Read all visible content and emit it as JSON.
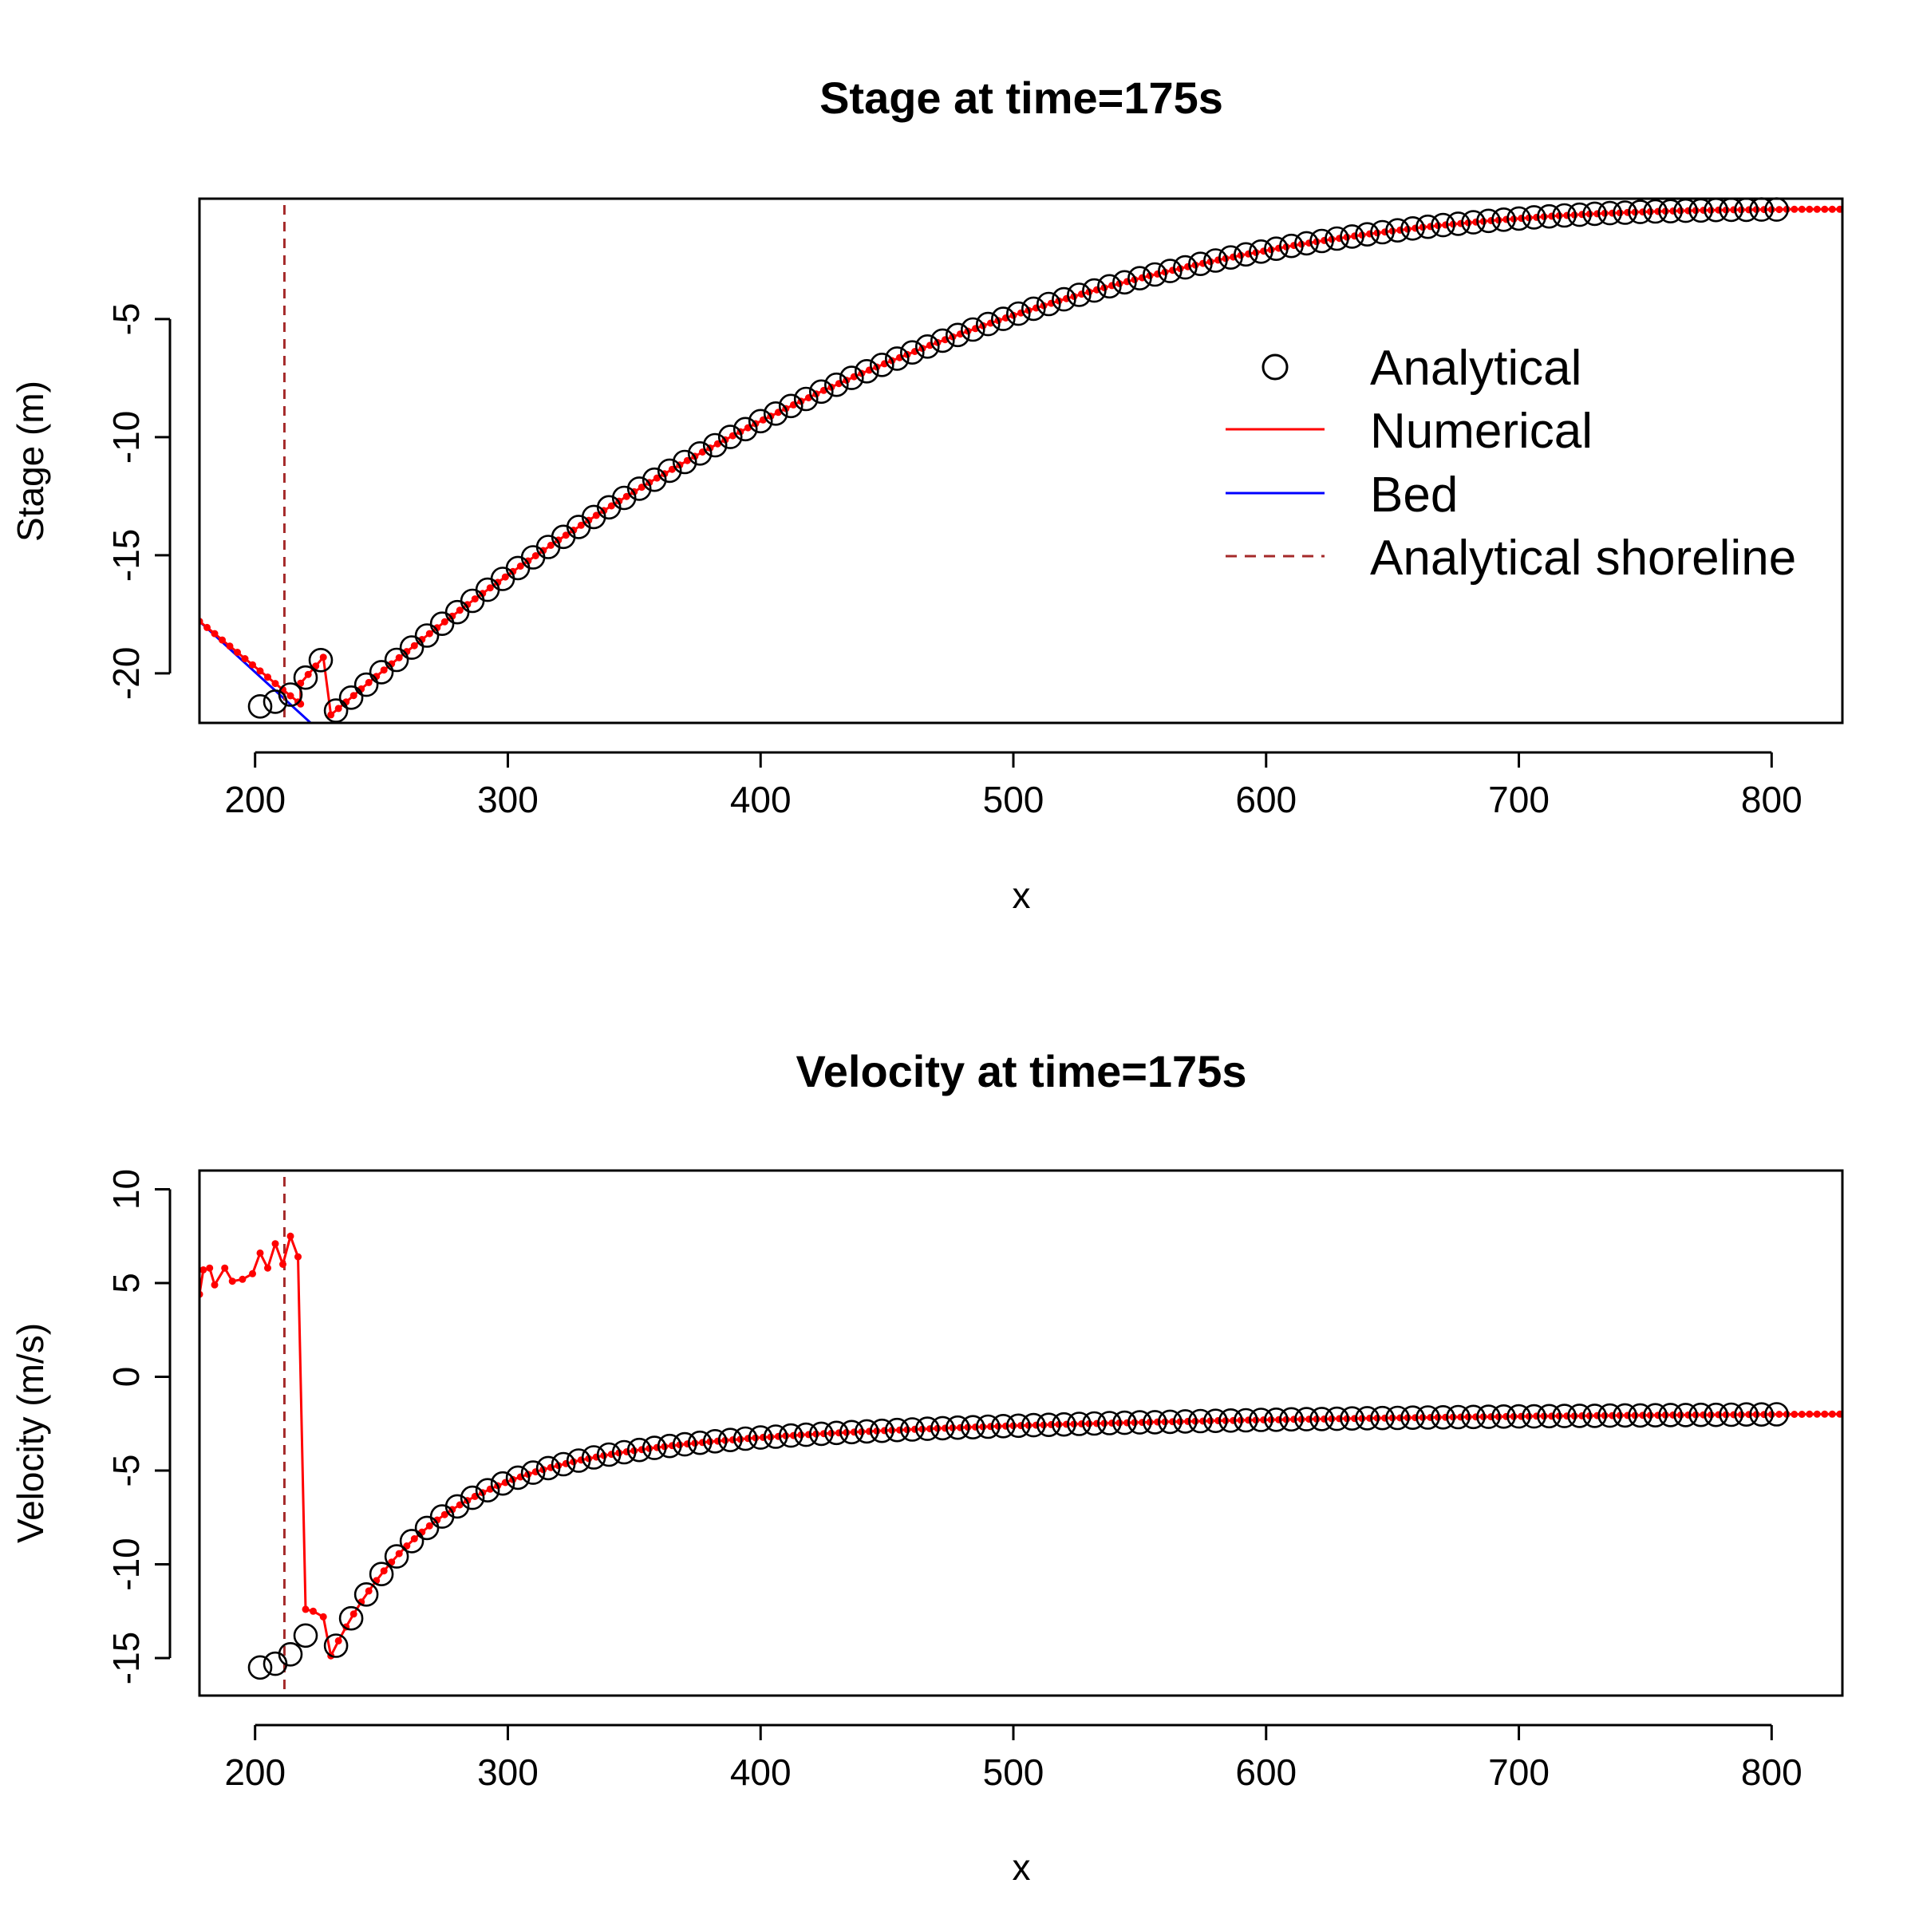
{
  "colors": {
    "analytical": "#000000",
    "numerical": "#ff0000",
    "bed": "#0000ff",
    "shoreline": "#a52a2a"
  },
  "legend": {
    "placement": "center-right",
    "entries": [
      {
        "label": "Analytical",
        "marker": "open-circle",
        "color": "#000000"
      },
      {
        "label": "Numerical",
        "line": "solid",
        "color": "#ff0000"
      },
      {
        "label": "Bed",
        "line": "solid",
        "color": "#0000ff"
      },
      {
        "label": "Analytical shoreline",
        "line": "dashed",
        "color": "#a52a2a"
      }
    ]
  },
  "chart_data": [
    {
      "type": "line",
      "title": "Stage at time=175s",
      "xlabel": "x",
      "ylabel": "Stage (m)",
      "xlim": [
        178,
        828
      ],
      "ylim": [
        -22.1,
        0.1
      ],
      "xticks": [
        200,
        300,
        400,
        500,
        600,
        700,
        800
      ],
      "yticks": [
        -20,
        -15,
        -10,
        -5
      ],
      "grid": false,
      "shoreline_x": 211.6,
      "analytical_model": {
        "type": "stage",
        "x_start": 202,
        "x_end": 805,
        "step": 6,
        "points": [
          [
            202,
            -21.4
          ],
          [
            208,
            -21.2
          ],
          [
            214,
            -20.9
          ]
        ]
      },
      "numerical_model": {
        "type": "stage",
        "x_start": 218,
        "x_end": 828,
        "step": 3,
        "wet_start": 218,
        "bed_points": [
          [
            178,
            -17.8
          ],
          [
            218,
            -21.3
          ]
        ]
      },
      "bed_model": {
        "points": [
          [
            178,
            -17.8
          ],
          [
            222,
            -22.1
          ]
        ]
      },
      "series": [
        {
          "name": "Analytical",
          "kind": "points"
        },
        {
          "name": "Numerical",
          "kind": "line"
        },
        {
          "name": "Bed",
          "kind": "line"
        }
      ]
    },
    {
      "type": "line",
      "title": "Velocity at time=175s",
      "xlabel": "x",
      "ylabel": "Velocity (m/s)",
      "xlim": [
        178,
        828
      ],
      "ylim": [
        -17.0,
        11.0
      ],
      "xticks": [
        200,
        300,
        400,
        500,
        600,
        700,
        800
      ],
      "yticks": [
        -15,
        -10,
        -5,
        0,
        5,
        10
      ],
      "grid": false,
      "shoreline_x": 211.6,
      "analytical_model": {
        "type": "velocity",
        "x_start": 202,
        "x_end": 805,
        "step": 6,
        "points": [
          [
            202,
            -15.5
          ],
          [
            208,
            -15.3
          ],
          [
            214,
            -14.8
          ],
          [
            220,
            -13.8
          ]
        ]
      },
      "numerical_model": {
        "type": "velocity",
        "x_start": 227,
        "x_end": 828,
        "step": 3,
        "dry_points": [
          [
            178,
            4.4
          ],
          [
            179.5,
            5.7
          ],
          [
            182,
            5.8
          ],
          [
            184,
            4.9
          ],
          [
            188,
            5.8
          ],
          [
            191,
            5.1
          ],
          [
            195,
            5.2
          ],
          [
            199,
            5.5
          ],
          [
            202,
            6.6
          ],
          [
            205,
            5.8
          ],
          [
            208,
            7.1
          ],
          [
            211,
            6.0
          ],
          [
            214,
            7.5
          ],
          [
            217,
            6.4
          ],
          [
            220,
            -12.4
          ],
          [
            223,
            -12.5
          ],
          [
            227,
            -12.8
          ]
        ]
      },
      "series": [
        {
          "name": "Analytical",
          "kind": "points"
        },
        {
          "name": "Numerical",
          "kind": "line"
        }
      ]
    }
  ]
}
